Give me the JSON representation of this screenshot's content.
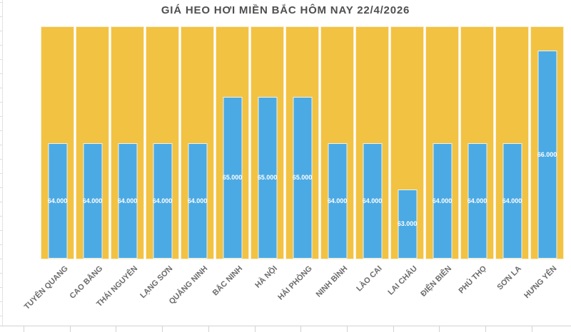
{
  "chart_data": {
    "type": "bar",
    "title": "GIÁ HEO HƠI MIỀN BẮC HÔM NAY 22/4/2026",
    "categories": [
      "TUYÊN QUANG",
      "CAO BẰNG",
      "THÁI NGUYÊN",
      "LẠNG SƠN",
      "QUẢNG NINH",
      "BẮC NINH",
      "HÀ NỘI",
      "HẢI PHÒNG",
      "NINH BÌNH",
      "LÀO CAI",
      "LAI CHÂU",
      "ĐIỆN BIÊN",
      "PHÚ THỌ",
      "SƠN LA",
      "HƯNG YÊN"
    ],
    "values": [
      64000,
      64000,
      64000,
      64000,
      64000,
      65000,
      65000,
      65000,
      64000,
      64000,
      63000,
      64000,
      64000,
      64000,
      66000
    ],
    "value_labels": [
      "64.000",
      "64.000",
      "64.000",
      "64.000",
      "64.000",
      "65.000",
      "65.000",
      "65.000",
      "64.000",
      "64.000",
      "63.000",
      "64.000",
      "64.000",
      "64.000",
      "66.000"
    ],
    "ylim": [
      61500,
      66500
    ],
    "xlabel": "",
    "ylabel": "",
    "grid": false,
    "legend": false,
    "layout": "full-height gold background bar behind each blue value bar",
    "colors": {
      "value_bar": "#4BAAE4",
      "background_bar": "#F2C243",
      "bar_label_text": "#FFFFFF",
      "axis_label_text": "#6B6B6B",
      "title_text": "#4F4F4F"
    }
  }
}
